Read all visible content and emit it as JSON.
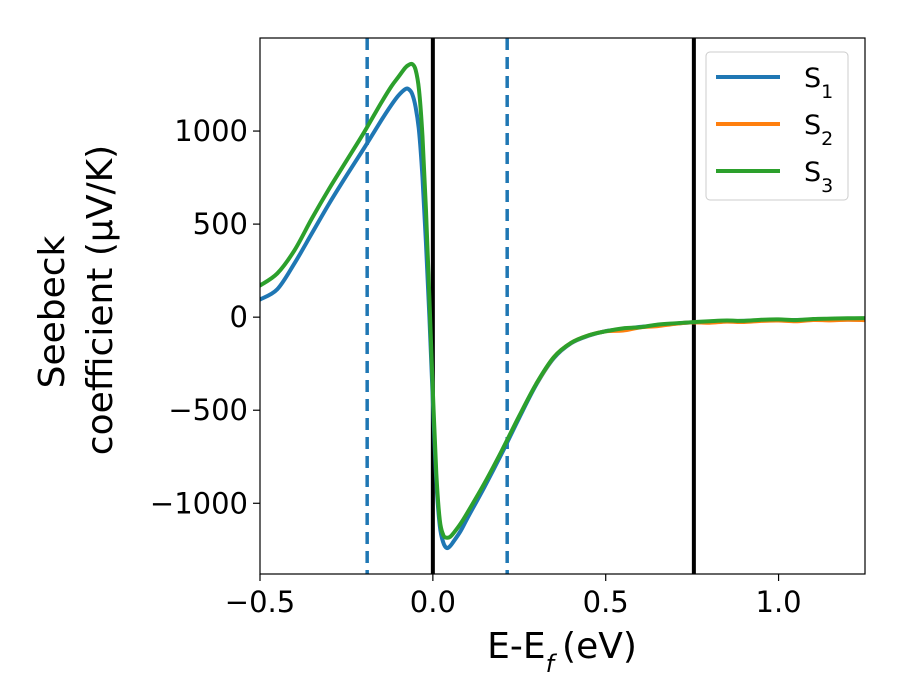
{
  "chart_data": {
    "type": "line",
    "xlabel_main": "E-E",
    "xlabel_sub": "f",
    "xlabel_unit": "(eV)",
    "ylabel_line1": "Seebeck",
    "ylabel_line2": "coefficient  (μV/K)",
    "xlim": [
      -0.5,
      1.25
    ],
    "ylim": [
      -1380,
      1500
    ],
    "xticks": [
      -0.5,
      0.0,
      0.5,
      1.0
    ],
    "xtick_labels": [
      "−0.5",
      "0.0",
      "0.5",
      "1.0"
    ],
    "yticks": [
      -1000,
      -500,
      0,
      500,
      1000
    ],
    "ytick_labels": [
      "−1000",
      "−500",
      "0",
      "500",
      "1000"
    ],
    "grid": false,
    "legend_position": "top-right",
    "vlines": [
      {
        "x": -0.19,
        "style": "dashed",
        "color": "#1f77b4"
      },
      {
        "x": 0.0,
        "style": "solid",
        "color": "#000000"
      },
      {
        "x": 0.215,
        "style": "dashed",
        "color": "#1f77b4"
      },
      {
        "x": 0.755,
        "style": "solid",
        "color": "#000000"
      }
    ],
    "series": [
      {
        "name": "S",
        "sub": "1",
        "color": "#1f77b4",
        "x": [
          -0.5,
          -0.45,
          -0.4,
          -0.35,
          -0.3,
          -0.25,
          -0.2,
          -0.15,
          -0.12,
          -0.1,
          -0.08,
          -0.07,
          -0.06,
          -0.05,
          -0.04,
          -0.03,
          -0.02,
          -0.01,
          0.0,
          0.01,
          0.02,
          0.03,
          0.04,
          0.05,
          0.06,
          0.08,
          0.1,
          0.15,
          0.2,
          0.25,
          0.3,
          0.35,
          0.4,
          0.45,
          0.5,
          0.55,
          0.6,
          0.65,
          0.7,
          0.75,
          0.8,
          0.85,
          0.9,
          0.95,
          1.0,
          1.05,
          1.1,
          1.15,
          1.2,
          1.25
        ],
        "values": [
          95,
          150,
          290,
          450,
          610,
          760,
          905,
          1055,
          1140,
          1190,
          1225,
          1225,
          1200,
          1130,
          1000,
          750,
          400,
          0,
          -450,
          -880,
          -1120,
          -1210,
          -1240,
          -1230,
          -1205,
          -1150,
          -1080,
          -910,
          -730,
          -540,
          -360,
          -220,
          -140,
          -100,
          -75,
          -65,
          -52,
          -45,
          -35,
          -28,
          -25,
          -22,
          -20,
          -18,
          -17,
          -15,
          -14,
          -14,
          -13,
          -13
        ]
      },
      {
        "name": "S",
        "sub": "2",
        "color": "#ff7f0e",
        "x": [
          0.3,
          0.35,
          0.4,
          0.45,
          0.5,
          0.55,
          0.6,
          0.65,
          0.7,
          0.75,
          0.8,
          0.85,
          0.9,
          0.95,
          1.0,
          1.05,
          1.1,
          1.15,
          1.2,
          1.25
        ],
        "values": [
          -355,
          -215,
          -138,
          -98,
          -76,
          -72,
          -55,
          -48,
          -36,
          -28,
          -30,
          -24,
          -26,
          -20,
          -18,
          -22,
          -15,
          -17,
          -14,
          -16
        ]
      },
      {
        "name": "S",
        "sub": "3",
        "color": "#2ca02c",
        "x": [
          -0.5,
          -0.45,
          -0.4,
          -0.35,
          -0.3,
          -0.25,
          -0.2,
          -0.15,
          -0.12,
          -0.1,
          -0.08,
          -0.07,
          -0.06,
          -0.05,
          -0.04,
          -0.03,
          -0.02,
          -0.01,
          0.0,
          0.01,
          0.02,
          0.03,
          0.04,
          0.05,
          0.06,
          0.08,
          0.1,
          0.15,
          0.2,
          0.25,
          0.3,
          0.35,
          0.4,
          0.45,
          0.5,
          0.55,
          0.6,
          0.65,
          0.7,
          0.75,
          0.8,
          0.85,
          0.9,
          0.95,
          1.0,
          1.05,
          1.1,
          1.15,
          1.2,
          1.25
        ],
        "values": [
          170,
          235,
          360,
          530,
          690,
          840,
          990,
          1150,
          1240,
          1290,
          1340,
          1355,
          1360,
          1330,
          1220,
          970,
          580,
          100,
          -400,
          -840,
          -1090,
          -1170,
          -1185,
          -1180,
          -1160,
          -1110,
          -1050,
          -890,
          -715,
          -530,
          -355,
          -215,
          -138,
          -98,
          -76,
          -60,
          -54,
          -40,
          -33,
          -27,
          -22,
          -18,
          -20,
          -14,
          -12,
          -16,
          -10,
          -8,
          -6,
          -5
        ]
      }
    ]
  }
}
